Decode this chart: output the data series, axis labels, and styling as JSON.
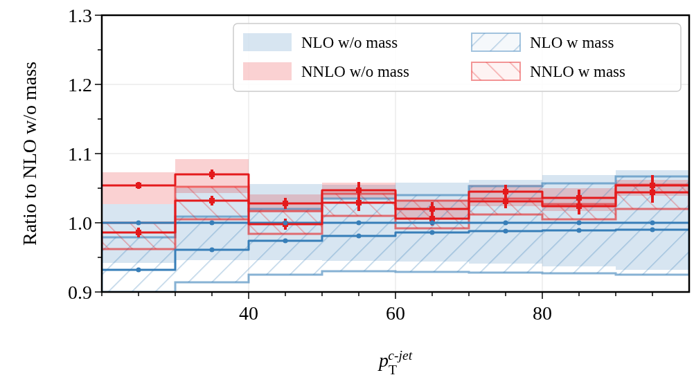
{
  "chart_data": {
    "type": "line",
    "xlabel": "p$_{T}$$^{c-jet}$",
    "ylabel": "Ratio to NLO w/o mass",
    "xlim": [
      20,
      100
    ],
    "ylim": [
      0.9,
      1.3
    ],
    "xticks": [
      {
        "value": 20,
        "label": null
      },
      {
        "value": 25,
        "label": null
      },
      {
        "value": 30,
        "label": null
      },
      {
        "value": 35,
        "label": null
      },
      40,
      {
        "value": 45,
        "label": null
      },
      {
        "value": 50,
        "label": null
      },
      {
        "value": 55,
        "label": null
      },
      60,
      {
        "value": 65,
        "label": null
      },
      {
        "value": 70,
        "label": null
      },
      {
        "value": 75,
        "label": null
      },
      80,
      {
        "value": 85,
        "label": null
      },
      {
        "value": 90,
        "label": null
      },
      {
        "value": 95,
        "label": null
      }
    ],
    "yticks": [
      0.9,
      {
        "value": 0.95,
        "label": null
      },
      {
        "value": 1,
        "label": "1.0"
      },
      {
        "value": 1.05,
        "label": null
      },
      1.1,
      {
        "value": 1.15,
        "label": null
      },
      1.2,
      {
        "value": 1.25,
        "label": null
      },
      1.3
    ],
    "grid": true,
    "legend": "top right",
    "series": [
      {
        "name": "NLO w/o mass",
        "color": "#377eb8",
        "x": [
          20,
          30,
          30,
          40,
          40,
          50,
          50,
          60,
          60,
          70,
          70,
          80,
          80,
          90,
          90,
          100
        ],
        "values": [
          1.0,
          1.0,
          1.0,
          1.0,
          1.0,
          1.0,
          1.0,
          1.0,
          1.0,
          1.0,
          1.0,
          1.0,
          1.0,
          1.0,
          1.0,
          1.0
        ],
        "lower": [
          0.942,
          0.942,
          0.946,
          0.946,
          0.946,
          0.946,
          0.945,
          0.945,
          0.944,
          0.944,
          0.941,
          0.941,
          0.937,
          0.937,
          0.932,
          0.932
        ],
        "upper": [
          1.027,
          1.027,
          1.05,
          1.05,
          1.056,
          1.056,
          1.055,
          1.055,
          1.058,
          1.058,
          1.062,
          1.062,
          1.069,
          1.069,
          1.076,
          1.076
        ]
      },
      {
        "name": "NNLO w/o mass",
        "color": "#e41a1c",
        "x": [
          20,
          30,
          30,
          40,
          40,
          50,
          50,
          60,
          60,
          70,
          70,
          80,
          80,
          90,
          90,
          100
        ],
        "values": [
          1.054,
          1.054,
          1.07,
          1.07,
          1.028,
          1.028,
          1.047,
          1.047,
          1.02,
          1.02,
          1.045,
          1.045,
          1.036,
          1.036,
          1.054,
          1.054
        ],
        "lower": [
          1.027,
          1.027,
          1.043,
          1.043,
          1.015,
          1.015,
          1.035,
          1.035,
          1.005,
          1.005,
          1.024,
          1.024,
          1.017,
          1.017,
          1.039,
          1.039
        ],
        "upper": [
          1.073,
          1.073,
          1.092,
          1.092,
          1.041,
          1.041,
          1.058,
          1.058,
          1.033,
          1.033,
          1.055,
          1.055,
          1.05,
          1.05,
          1.062,
          1.062
        ]
      },
      {
        "name": "NLO w mass",
        "color": "#377eb8",
        "x": [
          20,
          30,
          30,
          40,
          40,
          50,
          50,
          60,
          60,
          70,
          70,
          80,
          80,
          90,
          90,
          100
        ],
        "values": [
          0.932,
          0.932,
          0.961,
          0.961,
          0.974,
          0.974,
          0.981,
          0.981,
          0.986,
          0.986,
          0.988,
          0.988,
          0.989,
          0.989,
          0.99,
          0.99
        ],
        "lower": [
          0.9,
          0.9,
          0.914,
          0.914,
          0.925,
          0.925,
          0.93,
          0.93,
          0.929,
          0.929,
          0.928,
          0.928,
          0.927,
          0.927,
          0.925,
          0.925
        ],
        "upper": [
          0.979,
          0.979,
          1.009,
          1.009,
          1.02,
          1.02,
          1.035,
          1.035,
          1.04,
          1.04,
          1.053,
          1.053,
          1.057,
          1.057,
          1.067,
          1.067
        ]
      },
      {
        "name": "NNLO w mass",
        "color": "#e41a1c",
        "x": [
          20,
          30,
          30,
          40,
          40,
          50,
          50,
          60,
          60,
          70,
          70,
          80,
          80,
          90,
          90,
          100
        ],
        "values": [
          0.986,
          0.986,
          1.032,
          1.032,
          0.998,
          0.998,
          1.029,
          1.029,
          1.006,
          1.006,
          1.031,
          1.031,
          1.024,
          1.024,
          1.044,
          1.044
        ],
        "lower": [
          0.962,
          0.962,
          1.005,
          1.005,
          0.984,
          0.984,
          1.01,
          1.01,
          0.992,
          0.992,
          1.012,
          1.012,
          1.005,
          1.005,
          1.02,
          1.02
        ],
        "upper": [
          1.0,
          1.0,
          1.052,
          1.052,
          1.017,
          1.017,
          1.042,
          1.042,
          1.032,
          1.032,
          1.035,
          1.035,
          1.027,
          1.027,
          1.055,
          1.055
        ]
      },
      {
        "type": "scatter",
        "color": "#e41a1c",
        "marker": "square",
        "x": [
          25,
          35,
          45,
          55,
          65,
          75,
          85,
          95
        ],
        "values": [
          1.054,
          1.07,
          1.028,
          1.047,
          1.02,
          1.045,
          1.036,
          1.054
        ],
        "errors": [
          0.005,
          0.007,
          0.008,
          0.012,
          0.01,
          0.01,
          0.012,
          0.015
        ]
      },
      {
        "type": "scatter",
        "color": "#e41a1c",
        "marker": "square",
        "x": [
          25,
          35,
          45,
          55,
          65,
          75,
          85,
          95
        ],
        "values": [
          0.986,
          1.032,
          0.998,
          1.029,
          1.006,
          1.031,
          1.024,
          1.044
        ],
        "errors": [
          0.007,
          0.007,
          0.008,
          0.012,
          0.01,
          0.01,
          0.012,
          0.015
        ]
      },
      {
        "type": "scatter",
        "color": "#377eb8",
        "marker": "circle",
        "x": [
          25,
          35,
          45,
          55,
          65,
          75,
          85,
          95
        ],
        "values": [
          1.0,
          1.0,
          1.0,
          1.0,
          1.0,
          1.0,
          1.0,
          1.0
        ]
      },
      {
        "type": "scatter",
        "color": "#377eb8",
        "marker": "circle",
        "x": [
          25,
          35,
          45,
          55,
          65,
          75,
          85,
          95
        ],
        "values": [
          0.932,
          0.961,
          0.974,
          0.981,
          0.986,
          0.988,
          0.989,
          0.99
        ]
      }
    ]
  }
}
